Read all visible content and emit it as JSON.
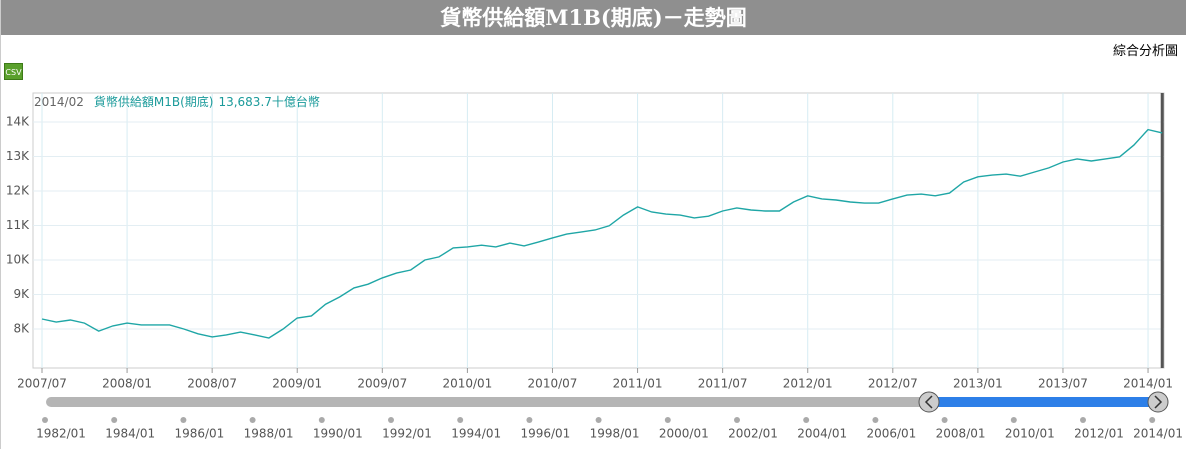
{
  "header": {
    "title": "貨幣供給額M1B(期底)－走勢圖",
    "link": "綜合分析圖",
    "csv": "CSV"
  },
  "chart_data": {
    "type": "line",
    "categories": [
      "2007/07",
      null,
      null,
      null,
      null,
      null,
      "2008/01",
      null,
      null,
      null,
      null,
      null,
      "2008/07",
      null,
      null,
      null,
      null,
      null,
      "2009/01",
      null,
      null,
      null,
      null,
      null,
      "2009/07",
      null,
      null,
      null,
      null,
      null,
      "2010/01",
      null,
      null,
      null,
      null,
      null,
      "2010/07",
      null,
      null,
      null,
      null,
      null,
      "2011/01",
      null,
      null,
      null,
      null,
      null,
      "2011/07",
      null,
      null,
      null,
      null,
      null,
      "2012/01",
      null,
      null,
      null,
      null,
      null,
      "2012/07",
      null,
      null,
      null,
      null,
      null,
      "2013/01",
      null,
      null,
      null,
      null,
      null,
      "2013/07",
      null,
      null,
      null,
      null,
      null,
      "2014/01",
      null
    ],
    "series": [
      {
        "name": "貨幣供給額M1B(期底)",
        "color": "#1fa6a6",
        "values": [
          8290,
          8200,
          8260,
          8170,
          7940,
          8090,
          8170,
          8120,
          8120,
          8120,
          8000,
          7860,
          7770,
          7830,
          7910,
          7830,
          7740,
          8000,
          8320,
          8380,
          8720,
          8930,
          9190,
          9300,
          9480,
          9620,
          9710,
          10000,
          10090,
          10350,
          10380,
          10430,
          10380,
          10490,
          10410,
          10520,
          10640,
          10750,
          10810,
          10870,
          10990,
          11300,
          11540,
          11390,
          11330,
          11300,
          11220,
          11270,
          11420,
          11510,
          11450,
          11420,
          11420,
          11680,
          11860,
          11770,
          11740,
          11680,
          11650,
          11650,
          11770,
          11880,
          11910,
          11860,
          11940,
          12260,
          12410,
          12460,
          12490,
          12430,
          12550,
          12670,
          12840,
          12930,
          12870,
          12930,
          12990,
          13330,
          13780,
          13683.7
        ]
      }
    ],
    "ylim": [
      6870,
      14840
    ],
    "yticks": [
      {
        "value": 8000,
        "label": "8K"
      },
      {
        "value": 9000,
        "label": "9K"
      },
      {
        "value": 10000,
        "label": "10K"
      },
      {
        "value": 11000,
        "label": "11K"
      },
      {
        "value": 12000,
        "label": "12K"
      },
      {
        "value": 13000,
        "label": "13K"
      },
      {
        "value": 14000,
        "label": "14K"
      }
    ],
    "grid": true,
    "tooltip": {
      "date": "2014/02",
      "value_label": "13,683.7",
      "unit": "十億台幣"
    }
  },
  "navigator": {
    "labels": [
      "1982/01",
      "1984/01",
      "1986/01",
      "1988/01",
      "1990/01",
      "1992/01",
      "1994/01",
      "1996/01",
      "1998/01",
      "2000/01",
      "2002/01",
      "2004/01",
      "2006/01",
      "2008/01",
      "2010/01",
      "2012/01",
      "2014/01"
    ]
  }
}
